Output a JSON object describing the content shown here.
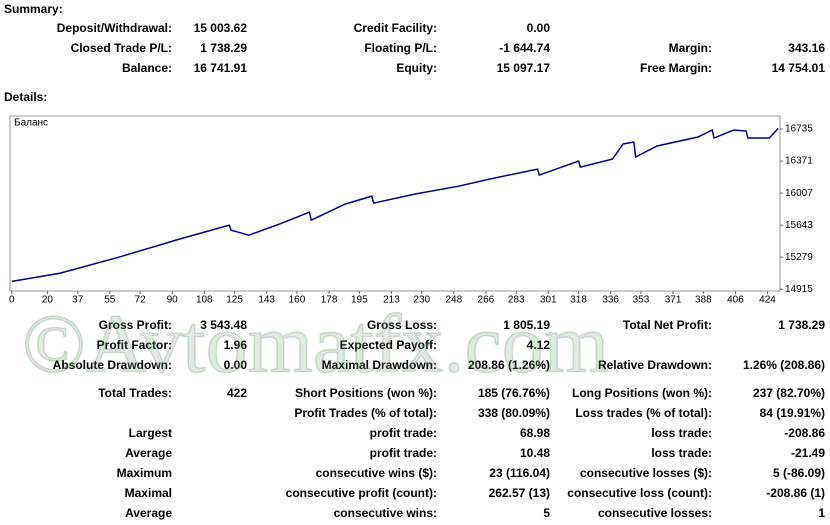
{
  "summary": {
    "title": "Summary:",
    "rows": [
      {
        "left": {
          "label": "Deposit/Withdrawal:",
          "value": "15 003.62"
        },
        "middle": {
          "label": "Credit Facility:",
          "value": "0.00"
        }
      },
      {
        "left": {
          "label": "Closed Trade P/L:",
          "value": "1 738.29"
        },
        "middle": {
          "label": "Floating P/L:",
          "value": "-1 644.74"
        },
        "right": {
          "label": "Margin:",
          "value": "343.16"
        }
      },
      {
        "left": {
          "label": "Balance:",
          "value": "16 741.91"
        },
        "middle": {
          "label": "Equity:",
          "value": "15 097.17"
        },
        "right": {
          "label": "Free Margin:",
          "value": "14 754.01"
        }
      }
    ]
  },
  "details_title": "Details:",
  "chart_data": {
    "type": "line",
    "legend": "Баланс",
    "color": "#00008b",
    "x": [
      0,
      27,
      60,
      94,
      122,
      123,
      133,
      150,
      167,
      168,
      187,
      202,
      203,
      226,
      251,
      268,
      295,
      296,
      318,
      319,
      337,
      343,
      349,
      350,
      362,
      385,
      393,
      394,
      405,
      412,
      413,
      425,
      430
    ],
    "values": [
      15004,
      15097,
      15279,
      15484,
      15643,
      15586,
      15529,
      15654,
      15791,
      15700,
      15882,
      15973,
      15893,
      15996,
      16087,
      16166,
      16280,
      16212,
      16371,
      16303,
      16394,
      16565,
      16587,
      16417,
      16542,
      16644,
      16724,
      16633,
      16724,
      16712,
      16633,
      16633,
      16742
    ],
    "xlim": [
      -1,
      431
    ],
    "ylim": [
      14895,
      16883
    ],
    "xticks": [
      0,
      20,
      37,
      55,
      72,
      90,
      108,
      125,
      143,
      160,
      178,
      195,
      213,
      230,
      248,
      266,
      283,
      301,
      318,
      336,
      353,
      371,
      388,
      406,
      424
    ],
    "yticks": [
      14915,
      15279,
      15643,
      16007,
      16371,
      16735
    ]
  },
  "stats": {
    "rows": [
      {
        "left": {
          "label": "Gross Profit:",
          "value": "3 543.48"
        },
        "middle": {
          "label": "Gross Loss:",
          "value": "1 805.19"
        },
        "right": {
          "label": "Total Net Profit:",
          "value": "1 738.29"
        }
      },
      {
        "left": {
          "label": "Profit Factor:",
          "value": "1.96"
        },
        "middle": {
          "label": "Expected Payoff:",
          "value": "4.12"
        }
      },
      {
        "left": {
          "label": "Absolute Drawdown:",
          "value": "0.00"
        },
        "middle": {
          "label": "Maximal Drawdown:",
          "value": "208.86 (1.26%)"
        },
        "right": {
          "label": "Relative Drawdown:",
          "value": "1.26% (208.86)"
        }
      },
      {
        "left": {
          "label": "Total Trades:",
          "value": "422"
        },
        "middle": {
          "label": "Short Positions (won %):",
          "value": "185 (76.76%)"
        },
        "right": {
          "label": "Long Positions (won %):",
          "value": "237 (82.70%)"
        }
      },
      {
        "middle": {
          "label": "Profit Trades (% of total):",
          "value": "338 (80.09%)"
        },
        "right": {
          "label": "Loss trades (% of total):",
          "value": "84 (19.91%)"
        }
      },
      {
        "left": {
          "label": "Largest"
        },
        "middle": {
          "label": "profit trade:",
          "value": "68.98"
        },
        "right": {
          "label": "loss trade:",
          "value": "-208.86"
        }
      },
      {
        "left": {
          "label": "Average"
        },
        "middle": {
          "label": "profit trade:",
          "value": "10.48"
        },
        "right": {
          "label": "loss trade:",
          "value": "-21.49"
        }
      },
      {
        "left": {
          "label": "Maximum"
        },
        "middle": {
          "label": "consecutive wins ($):",
          "value": "23 (116.04)"
        },
        "right": {
          "label": "consecutive losses ($):",
          "value": "5 (-86.09)"
        }
      },
      {
        "left": {
          "label": "Maximal"
        },
        "middle": {
          "label": "consecutive profit (count):",
          "value": "262.57 (13)"
        },
        "right": {
          "label": "consecutive loss (count):",
          "value": "-208.86 (1)"
        }
      },
      {
        "left": {
          "label": "Average"
        },
        "middle": {
          "label": "consecutive wins:",
          "value": "5"
        },
        "right": {
          "label": "consecutive losses:",
          "value": "1"
        }
      }
    ]
  },
  "watermark": "©Avtomatfx.com"
}
